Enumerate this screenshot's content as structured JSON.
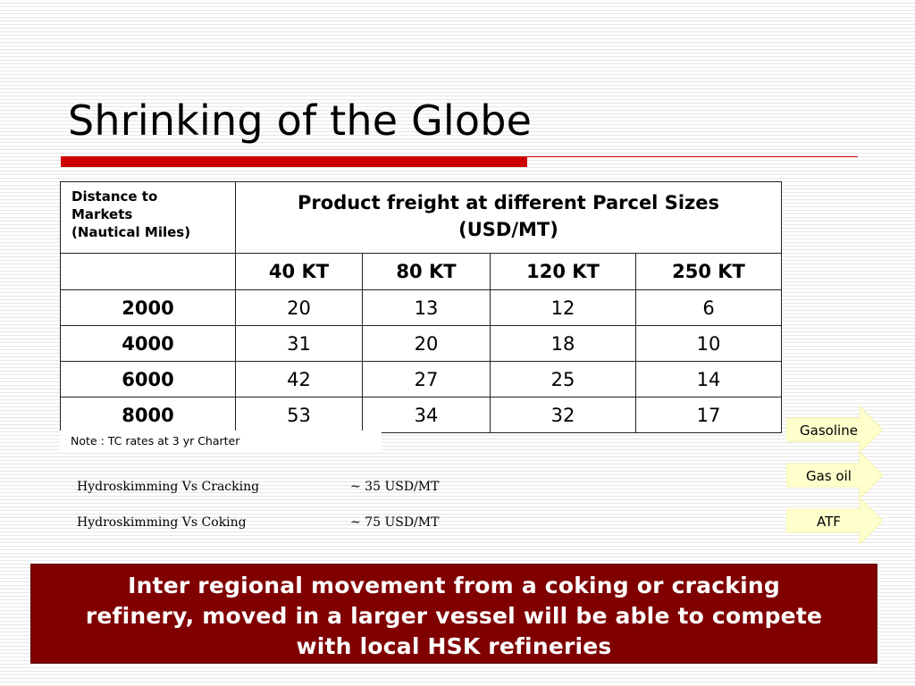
{
  "slide": {
    "title": "Shrinking of the Globe"
  },
  "table": {
    "header_left_lines": [
      "Distance to",
      "Markets",
      "(Nautical Miles)"
    ],
    "header_main_lines": [
      "Product freight at different Parcel Sizes",
      "(USD/MT)"
    ],
    "parcel_sizes": [
      "40 KT",
      "80 KT",
      "120 KT",
      "250 KT"
    ],
    "rows": [
      {
        "distance": "2000",
        "values": [
          "20",
          "13",
          "12",
          "6"
        ]
      },
      {
        "distance": "4000",
        "values": [
          "31",
          "20",
          "18",
          "10"
        ]
      },
      {
        "distance": "6000",
        "values": [
          "42",
          "27",
          "25",
          "14"
        ]
      },
      {
        "distance": "8000",
        "values": [
          "53",
          "34",
          "32",
          "17"
        ]
      }
    ],
    "note": "Note : TC rates at 3 yr Charter"
  },
  "comparisons": [
    {
      "label": "Hydroskimming Vs Cracking",
      "value": "~ 35 USD/MT"
    },
    {
      "label": "Hydroskimming Vs Coking",
      "value": "~ 75 USD/MT"
    }
  ],
  "products": [
    "Gasoline",
    "Gas oil",
    "ATF"
  ],
  "colors": {
    "accent_red": "#cc0000",
    "callout_bg": "#800000",
    "arrow_fill": "#ffffcc"
  },
  "callout": {
    "lines": [
      "Inter regional movement from a coking or cracking",
      "refinery, moved in a larger vessel will be able to compete",
      "with local HSK refineries"
    ]
  }
}
